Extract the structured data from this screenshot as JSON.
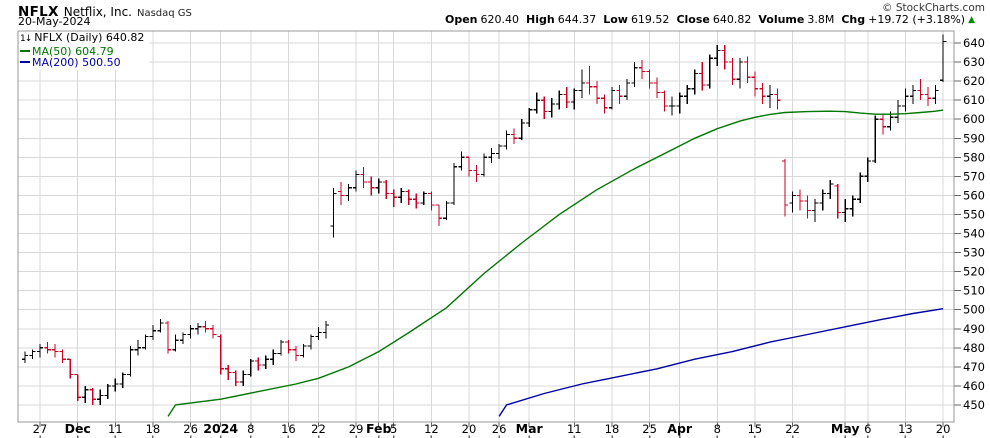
{
  "header": {
    "symbol": "NFLX",
    "company": "Netflix, Inc.",
    "exchange": "Nasdaq GS",
    "date": "20-May-2024",
    "copyright": "© StockCharts.com",
    "quote": [
      {
        "label": "Open",
        "value": "620.40"
      },
      {
        "label": "High",
        "value": "644.37"
      },
      {
        "label": "Low",
        "value": "619.52"
      },
      {
        "label": "Close",
        "value": "640.82"
      },
      {
        "label": "Volume",
        "value": "3.8M"
      },
      {
        "label": "Chg",
        "value": "+19.72 (+3.18%)"
      }
    ],
    "chg_arrow": "▲"
  },
  "legend": {
    "price_icon": "1↓",
    "price_label": "NFLX (Daily) 640.82",
    "ma50_label": "MA(50) 604.79",
    "ma200_label": "MA(200) 500.50"
  },
  "colors": {
    "up_bar": "#000000",
    "down_bar": "#cc0022",
    "ma50": "#007700",
    "ma200": "#0000aa",
    "grid": "#d8d8d8",
    "border": "#999999",
    "tick": "#666666",
    "axis_text": "#000000",
    "arrow_up": "#008800",
    "copyright": "#333333"
  },
  "chart_data": {
    "type": "ohlc-bar",
    "title": "NFLX (Daily)",
    "subtitle": "Netflix, Inc. Nasdaq GS",
    "last_close": 640.82,
    "ma50_value": 604.79,
    "ma200_value": 500.5,
    "grid": true,
    "legend_position": "top-left",
    "y_range": [
      441,
      646
    ],
    "y_ticks": [
      450,
      460,
      470,
      480,
      490,
      500,
      510,
      520,
      530,
      540,
      550,
      560,
      570,
      580,
      590,
      600,
      610,
      620,
      630,
      640
    ],
    "x_ticks": [
      {
        "label": "27",
        "i": 2,
        "bold": false
      },
      {
        "label": "Dec",
        "i": 7,
        "bold": true
      },
      {
        "label": "11",
        "i": 12,
        "bold": false
      },
      {
        "label": "18",
        "i": 17,
        "bold": false
      },
      {
        "label": "26",
        "i": 22,
        "bold": false
      },
      {
        "label": "2024",
        "i": 26,
        "bold": true
      },
      {
        "label": "8",
        "i": 30,
        "bold": false
      },
      {
        "label": "16",
        "i": 35,
        "bold": false
      },
      {
        "label": "22",
        "i": 39,
        "bold": false
      },
      {
        "label": "29",
        "i": 44,
        "bold": false
      },
      {
        "label": "Feb",
        "i": 47,
        "bold": true
      },
      {
        "label": "5",
        "i": 49,
        "bold": false
      },
      {
        "label": "12",
        "i": 54,
        "bold": false
      },
      {
        "label": "20",
        "i": 59,
        "bold": false
      },
      {
        "label": "26",
        "i": 63,
        "bold": false
      },
      {
        "label": "Mar",
        "i": 67,
        "bold": true
      },
      {
        "label": "11",
        "i": 73,
        "bold": false
      },
      {
        "label": "18",
        "i": 78,
        "bold": false
      },
      {
        "label": "25",
        "i": 83,
        "bold": false
      },
      {
        "label": "Apr",
        "i": 87,
        "bold": true
      },
      {
        "label": "8",
        "i": 92,
        "bold": false
      },
      {
        "label": "15",
        "i": 97,
        "bold": false
      },
      {
        "label": "22",
        "i": 102,
        "bold": false
      },
      {
        "label": "May",
        "i": 109,
        "bold": true
      },
      {
        "label": "6",
        "i": 112,
        "bold": false
      },
      {
        "label": "13",
        "i": 117,
        "bold": false
      },
      {
        "label": "20",
        "i": 122,
        "bold": false
      }
    ],
    "bars": {
      "dates": [
        "2023-11-22",
        "2023-11-24",
        "2023-11-27",
        "2023-11-28",
        "2023-11-29",
        "2023-11-30",
        "2023-12-01",
        "2023-12-04",
        "2023-12-05",
        "2023-12-06",
        "2023-12-07",
        "2023-12-08",
        "2023-12-11",
        "2023-12-12",
        "2023-12-13",
        "2023-12-14",
        "2023-12-15",
        "2023-12-18",
        "2023-12-19",
        "2023-12-20",
        "2023-12-21",
        "2023-12-22",
        "2023-12-26",
        "2023-12-27",
        "2023-12-28",
        "2023-12-29",
        "2024-01-02",
        "2024-01-03",
        "2024-01-04",
        "2024-01-05",
        "2024-01-08",
        "2024-01-09",
        "2024-01-10",
        "2024-01-11",
        "2024-01-12",
        "2024-01-16",
        "2024-01-17",
        "2024-01-18",
        "2024-01-19",
        "2024-01-22",
        "2024-01-23",
        "2024-01-24",
        "2024-01-25",
        "2024-01-26",
        "2024-01-29",
        "2024-01-30",
        "2024-01-31",
        "2024-02-01",
        "2024-02-02",
        "2024-02-05",
        "2024-02-06",
        "2024-02-07",
        "2024-02-08",
        "2024-02-09",
        "2024-02-12",
        "2024-02-13",
        "2024-02-14",
        "2024-02-15",
        "2024-02-16",
        "2024-02-20",
        "2024-02-21",
        "2024-02-22",
        "2024-02-23",
        "2024-02-26",
        "2024-02-27",
        "2024-02-28",
        "2024-02-29",
        "2024-03-01",
        "2024-03-04",
        "2024-03-05",
        "2024-03-06",
        "2024-03-07",
        "2024-03-08",
        "2024-03-11",
        "2024-03-12",
        "2024-03-13",
        "2024-03-14",
        "2024-03-15",
        "2024-03-18",
        "2024-03-19",
        "2024-03-20",
        "2024-03-21",
        "2024-03-22",
        "2024-03-25",
        "2024-03-26",
        "2024-03-27",
        "2024-03-28",
        "2024-04-01",
        "2024-04-02",
        "2024-04-03",
        "2024-04-04",
        "2024-04-05",
        "2024-04-08",
        "2024-04-09",
        "2024-04-10",
        "2024-04-11",
        "2024-04-12",
        "2024-04-15",
        "2024-04-16",
        "2024-04-17",
        "2024-04-18",
        "2024-04-19",
        "2024-04-22",
        "2024-04-23",
        "2024-04-24",
        "2024-04-25",
        "2024-04-26",
        "2024-04-29",
        "2024-04-30",
        "2024-05-01",
        "2024-05-02",
        "2024-05-03",
        "2024-05-06",
        "2024-05-07",
        "2024-05-08",
        "2024-05-09",
        "2024-05-10",
        "2024-05-13",
        "2024-05-14",
        "2024-05-15",
        "2024-05-16",
        "2024-05-17",
        "2024-05-20"
      ],
      "ohlc": [
        [
          474,
          478,
          472,
          476
        ],
        [
          476,
          479,
          474,
          478
        ],
        [
          478,
          482,
          475,
          480
        ],
        [
          480,
          483,
          477,
          479
        ],
        [
          479,
          482,
          475,
          478
        ],
        [
          478,
          479,
          472,
          474
        ],
        [
          474,
          474,
          464,
          466
        ],
        [
          466,
          466,
          452,
          454
        ],
        [
          454,
          460,
          451,
          458
        ],
        [
          458,
          459,
          450,
          453
        ],
        [
          453,
          458,
          450,
          455
        ],
        [
          455,
          461,
          453,
          460
        ],
        [
          460,
          464,
          457,
          461
        ],
        [
          461,
          467,
          459,
          466
        ],
        [
          466,
          481,
          465,
          479
        ],
        [
          479,
          484,
          476,
          480
        ],
        [
          480,
          487,
          479,
          486
        ],
        [
          486,
          492,
          484,
          489
        ],
        [
          489,
          495,
          488,
          493
        ],
        [
          493,
          494,
          477,
          479
        ],
        [
          479,
          487,
          478,
          484
        ],
        [
          484,
          488,
          482,
          487
        ],
        [
          487,
          492,
          485,
          490
        ],
        [
          490,
          493,
          487,
          491
        ],
        [
          491,
          494,
          488,
          490
        ],
        [
          490,
          492,
          485,
          487
        ],
        [
          486,
          487,
          466,
          469
        ],
        [
          469,
          471,
          463,
          467
        ],
        [
          467,
          468,
          460,
          462
        ],
        [
          462,
          468,
          460,
          466
        ],
        [
          466,
          474,
          465,
          473
        ],
        [
          473,
          475,
          468,
          471
        ],
        [
          471,
          476,
          469,
          474
        ],
        [
          474,
          479,
          471,
          477
        ],
        [
          477,
          484,
          476,
          483
        ],
        [
          483,
          484,
          477,
          479
        ],
        [
          479,
          481,
          473,
          476
        ],
        [
          476,
          482,
          475,
          481
        ],
        [
          481,
          487,
          479,
          486
        ],
        [
          486,
          491,
          484,
          488
        ],
        [
          488,
          494,
          485,
          492
        ],
        [
          544,
          564,
          538,
          561
        ],
        [
          562,
          567,
          555,
          560
        ],
        [
          560,
          566,
          557,
          564
        ],
        [
          564,
          573,
          562,
          571
        ],
        [
          571,
          575,
          564,
          567
        ],
        [
          567,
          570,
          560,
          564
        ],
        [
          564,
          569,
          561,
          567
        ],
        [
          567,
          568,
          558,
          561
        ],
        [
          561,
          563,
          554,
          559
        ],
        [
          559,
          564,
          556,
          562
        ],
        [
          562,
          563,
          555,
          558
        ],
        [
          558,
          561,
          553,
          556
        ],
        [
          556,
          562,
          555,
          561
        ],
        [
          561,
          562,
          552,
          555
        ],
        [
          555,
          555,
          544,
          548
        ],
        [
          548,
          557,
          547,
          556
        ],
        [
          556,
          577,
          555,
          575
        ],
        [
          575,
          583,
          573,
          580
        ],
        [
          580,
          580,
          570,
          573
        ],
        [
          573,
          576,
          567,
          571
        ],
        [
          571,
          582,
          570,
          580
        ],
        [
          580,
          585,
          577,
          582
        ],
        [
          582,
          587,
          579,
          586
        ],
        [
          586,
          594,
          584,
          592
        ],
        [
          592,
          595,
          587,
          590
        ],
        [
          590,
          600,
          589,
          598
        ],
        [
          598,
          606,
          596,
          605
        ],
        [
          605,
          614,
          603,
          610
        ],
        [
          610,
          612,
          600,
          604
        ],
        [
          604,
          611,
          601,
          608
        ],
        [
          608,
          615,
          605,
          613
        ],
        [
          613,
          617,
          606,
          609
        ],
        [
          609,
          616,
          605,
          615
        ],
        [
          615,
          626,
          611,
          619
        ],
        [
          619,
          628,
          613,
          617
        ],
        [
          617,
          620,
          608,
          611
        ],
        [
          611,
          613,
          603,
          606
        ],
        [
          606,
          617,
          605,
          615
        ],
        [
          615,
          618,
          608,
          612
        ],
        [
          612,
          621,
          610,
          619
        ],
        [
          619,
          630,
          617,
          627
        ],
        [
          627,
          631,
          621,
          625
        ],
        [
          625,
          626,
          616,
          619
        ],
        [
          619,
          622,
          611,
          614
        ],
        [
          614,
          615,
          604,
          607
        ],
        [
          607,
          612,
          602,
          607
        ],
        [
          607,
          614,
          603,
          612
        ],
        [
          612,
          618,
          608,
          616
        ],
        [
          616,
          626,
          613,
          624
        ],
        [
          624,
          630,
          615,
          618
        ],
        [
          618,
          634,
          616,
          632
        ],
        [
          632,
          639,
          628,
          636
        ],
        [
          636,
          639,
          626,
          630
        ],
        [
          630,
          632,
          618,
          621
        ],
        [
          621,
          632,
          616,
          630
        ],
        [
          630,
          633,
          619,
          622
        ],
        [
          622,
          625,
          612,
          616
        ],
        [
          616,
          619,
          608,
          612
        ],
        [
          612,
          618,
          606,
          613
        ],
        [
          613,
          616,
          605,
          610
        ],
        [
          578,
          579,
          549,
          555
        ],
        [
          556,
          562,
          551,
          560
        ],
        [
          560,
          563,
          552,
          557
        ],
        [
          557,
          560,
          548,
          552
        ],
        [
          552,
          558,
          546,
          556
        ],
        [
          556,
          563,
          552,
          561
        ],
        [
          561,
          568,
          558,
          566
        ],
        [
          565,
          566,
          548,
          551
        ],
        [
          551,
          558,
          546,
          553
        ],
        [
          553,
          560,
          549,
          558
        ],
        [
          558,
          572,
          556,
          570
        ],
        [
          570,
          580,
          567,
          578
        ],
        [
          578,
          602,
          577,
          600
        ],
        [
          600,
          603,
          592,
          596
        ],
        [
          596,
          604,
          594,
          601
        ],
        [
          601,
          610,
          598,
          607
        ],
        [
          607,
          616,
          604,
          612
        ],
        [
          612,
          618,
          608,
          615
        ],
        [
          615,
          621,
          610,
          613
        ],
        [
          613,
          617,
          607,
          611
        ],
        [
          611,
          618,
          608,
          615
        ],
        [
          620.4,
          644.37,
          619.52,
          640.82
        ]
      ]
    },
    "ma50": {
      "name": "MA(50)",
      "value": 604.79,
      "points": [
        [
          19,
          444
        ],
        [
          20,
          450
        ],
        [
          26,
          453
        ],
        [
          31,
          457
        ],
        [
          36,
          461
        ],
        [
          39,
          464
        ],
        [
          43,
          470
        ],
        [
          47,
          478
        ],
        [
          51,
          488
        ],
        [
          56,
          501
        ],
        [
          61,
          519
        ],
        [
          66,
          535
        ],
        [
          71,
          550
        ],
        [
          76,
          563
        ],
        [
          81,
          574
        ],
        [
          86,
          584
        ],
        [
          89,
          590
        ],
        [
          92,
          595
        ],
        [
          95,
          599
        ],
        [
          97,
          601
        ],
        [
          99,
          602.5
        ],
        [
          101,
          603.5
        ],
        [
          104,
          604
        ],
        [
          107,
          604.2
        ],
        [
          109,
          604
        ],
        [
          111,
          603.2
        ],
        [
          113,
          602.6
        ],
        [
          115,
          602.6
        ],
        [
          117,
          602.9
        ],
        [
          119,
          603.5
        ],
        [
          121,
          604.2
        ],
        [
          122,
          604.79
        ]
      ]
    },
    "ma200": {
      "name": "MA(200)",
      "value": 500.5,
      "points": [
        [
          63,
          444
        ],
        [
          64,
          450
        ],
        [
          69,
          456
        ],
        [
          74,
          461
        ],
        [
          79,
          465
        ],
        [
          84,
          469
        ],
        [
          89,
          474
        ],
        [
          94,
          478
        ],
        [
          99,
          483
        ],
        [
          104,
          487
        ],
        [
          109,
          491
        ],
        [
          114,
          495
        ],
        [
          118,
          498
        ],
        [
          122,
          500.5
        ]
      ]
    }
  }
}
